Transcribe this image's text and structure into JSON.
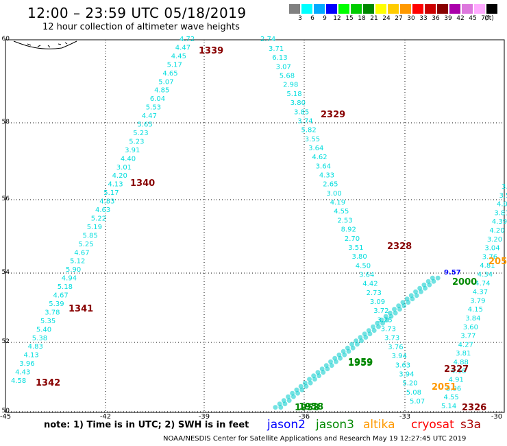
{
  "header": {
    "title": "12:00 – 23:59 UTC 05/18/2019",
    "subtitle": "12 hour collection of altimeter wave heights"
  },
  "color_scale": {
    "unit": "(ft)",
    "bins": [
      {
        "color": "#808080",
        "label": "3"
      },
      {
        "color": "#00ffff",
        "label": "6"
      },
      {
        "color": "#00aaff",
        "label": "9"
      },
      {
        "color": "#0000ff",
        "label": "12"
      },
      {
        "color": "#00ff00",
        "label": "15"
      },
      {
        "color": "#00cc00",
        "label": "18"
      },
      {
        "color": "#008800",
        "label": "21"
      },
      {
        "color": "#ffff00",
        "label": "24"
      },
      {
        "color": "#ffcc00",
        "label": "27"
      },
      {
        "color": "#ff9900",
        "label": "30"
      },
      {
        "color": "#ff0000",
        "label": "33"
      },
      {
        "color": "#cc0000",
        "label": "36"
      },
      {
        "color": "#880000",
        "label": "39"
      },
      {
        "color": "#aa00aa",
        "label": "42"
      },
      {
        "color": "#dd77dd",
        "label": "45"
      },
      {
        "color": "#ffaaff",
        "label": "70"
      },
      {
        "color": "#000000",
        "label": ""
      }
    ]
  },
  "map": {
    "lat_labels": [
      "60",
      "58",
      "56",
      "54",
      "52",
      "50"
    ],
    "lon_labels": [
      "-45",
      "-42",
      "-39",
      "-36",
      "-33",
      "-30"
    ],
    "tracks": [
      {
        "color": "#00dddd",
        "values": [
          "4.58",
          "4.43",
          "3.96",
          "4.13",
          "4.83",
          "5.38",
          "5.40",
          "5.35",
          "3.78",
          "5.39",
          "4.67",
          "5.18",
          "4.94",
          "5.90",
          "5.12",
          "4.67",
          "5.25",
          "5.85",
          "5.19",
          "5.22",
          "4.63",
          "4.83",
          "5.17",
          "4.13",
          "4.20",
          "3.01",
          "4.40",
          "3.91",
          "5.23",
          "5.23",
          "5.65",
          "4.47",
          "5.53",
          "6.04",
          "4.85",
          "5.07",
          "4.65",
          "5.17",
          "4.45",
          "4.47",
          "4.72"
        ]
      },
      {
        "color": "#00dddd",
        "values": [
          "3.71",
          "6.13",
          "3.07",
          "5.68",
          "2.98",
          "5.18",
          "3.80",
          "3.85",
          "3.74",
          "5.82",
          "3.55",
          "3.64",
          "4.62",
          "3.64",
          "4.33",
          "2.65",
          "3.00",
          "4.19",
          "4.55",
          "2.53",
          "8.92",
          "2.70",
          "3.51",
          "3.80",
          "4.50",
          "3.64",
          "4.42",
          "2.73",
          "3.09",
          "3.72",
          "3.25",
          "3.73",
          "3.73",
          "3.76",
          "3.94",
          "3.63",
          "3.94",
          "5.20",
          "5.08",
          "5.07"
        ]
      },
      {
        "color": "#00dddd",
        "values": [
          "2.74"
        ]
      },
      {
        "color": "#00dddd",
        "values": [
          "5.14",
          "4.55",
          "5.96",
          "4.91",
          "4.16",
          "4.88",
          "3.81",
          "4.27",
          "3.77",
          "3.60",
          "3.84",
          "4.15",
          "3.79",
          "4.37",
          "4.74",
          "4.34",
          "4.81",
          "3.76",
          "3.04",
          "3.20",
          "4.20",
          "4.39",
          "3.81",
          "4.08",
          "3.5",
          "3."
        ]
      }
    ],
    "pass_labels": [
      {
        "text": "1339",
        "color": "#880000"
      },
      {
        "text": "1340",
        "color": "#880000"
      },
      {
        "text": "1341",
        "color": "#880000"
      },
      {
        "text": "1342",
        "color": "#880000"
      },
      {
        "text": "2329",
        "color": "#880000"
      },
      {
        "text": "2328",
        "color": "#880000"
      },
      {
        "text": "2327",
        "color": "#880000"
      },
      {
        "text": "2326",
        "color": "#880000"
      },
      {
        "text": "2000",
        "color": "#008800"
      },
      {
        "text": "1959",
        "color": "#008800"
      },
      {
        "text": "1959",
        "color": "#008800"
      },
      {
        "text": "1958",
        "color": "#008800"
      },
      {
        "text": "1958",
        "color": "#008800"
      },
      {
        "text": "2051",
        "color": "#ff9900"
      },
      {
        "text": "205",
        "color": "#ff9900"
      },
      {
        "text": "9.57",
        "color": "#0000ff"
      }
    ]
  },
  "footer": {
    "note": "note:  1) Time is in UTC;  2) SWH is in feet",
    "satellites": [
      {
        "name": "jason2",
        "color": "#0000ff"
      },
      {
        "name": "jason3",
        "color": "#008800"
      },
      {
        "name": "altika",
        "color": "#ff9900"
      },
      {
        "name": "cryosat",
        "color": "#ff0000"
      },
      {
        "name": "s3a",
        "color": "#aa0000"
      }
    ],
    "credit": "NOAA/NESDIS Center for Satellite Applications and Research     May 19 12:27:45 UTC 2019"
  }
}
